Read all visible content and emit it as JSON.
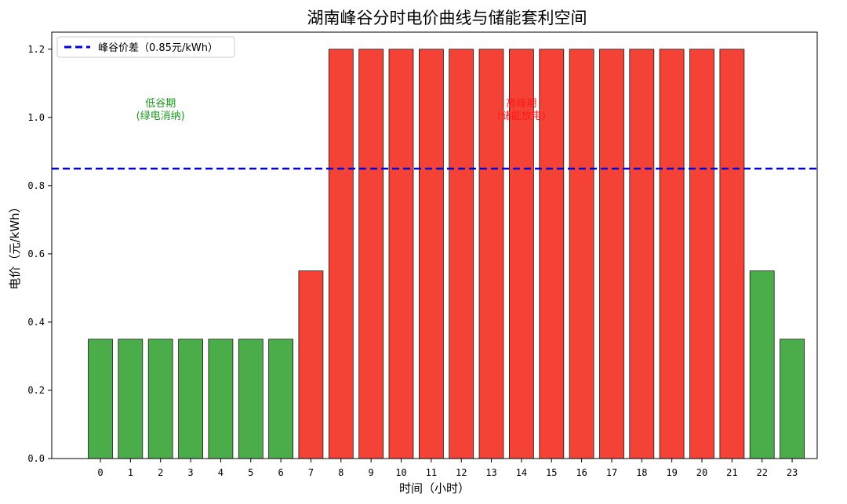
{
  "chart_data": {
    "type": "bar",
    "title": "湖南峰谷分时电价曲线与储能套利空间",
    "xlabel": "时间（小时）",
    "ylabel": "电价（元/kWh）",
    "categories": [
      "0",
      "1",
      "2",
      "3",
      "4",
      "5",
      "6",
      "7",
      "8",
      "9",
      "10",
      "11",
      "12",
      "13",
      "14",
      "15",
      "16",
      "17",
      "18",
      "19",
      "20",
      "21",
      "22",
      "23"
    ],
    "values": [
      0.35,
      0.35,
      0.35,
      0.35,
      0.35,
      0.35,
      0.35,
      0.55,
      1.2,
      1.2,
      1.2,
      1.2,
      1.2,
      1.2,
      1.2,
      1.2,
      1.2,
      1.2,
      1.2,
      1.2,
      1.2,
      1.2,
      0.55,
      0.35
    ],
    "bar_colors": [
      "#4aad4a",
      "#4aad4a",
      "#4aad4a",
      "#4aad4a",
      "#4aad4a",
      "#4aad4a",
      "#4aad4a",
      "#f44336",
      "#f44336",
      "#f44336",
      "#f44336",
      "#f44336",
      "#f44336",
      "#f44336",
      "#f44336",
      "#f44336",
      "#f44336",
      "#f44336",
      "#f44336",
      "#f44336",
      "#f44336",
      "#f44336",
      "#4aad4a",
      "#4aad4a"
    ],
    "ylim": [
      0,
      1.25
    ],
    "yticks": [
      "0.0",
      "0.2",
      "0.4",
      "0.6",
      "0.8",
      "1.0",
      "1.2"
    ],
    "reference_line": {
      "y": 0.85,
      "label": "峰谷价差（0.85元/kWh）",
      "color": "#0000dd",
      "style": "dashed"
    },
    "annotations": [
      {
        "lines": [
          "低谷期",
          "(绿电消纳)"
        ],
        "x": 2,
        "y": 1.02,
        "color": "#1a9a1a"
      },
      {
        "lines": [
          "高峰期",
          "(储能放电)"
        ],
        "x": 14,
        "y": 1.02,
        "color": "#ff1a1a"
      }
    ],
    "legend": {
      "position": "top-left"
    },
    "grid": false
  }
}
